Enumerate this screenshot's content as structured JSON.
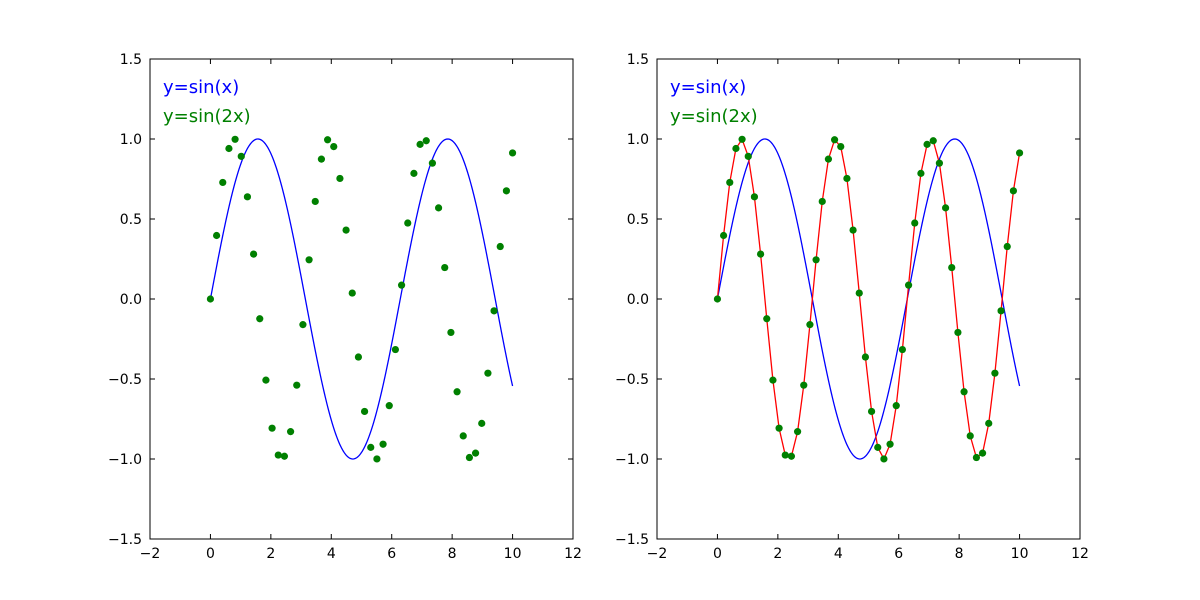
{
  "chart_data": [
    {
      "type": "line",
      "title": "",
      "xlabel": "",
      "ylabel": "",
      "xlim": [
        -2,
        12
      ],
      "ylim": [
        -1.5,
        1.5
      ],
      "xticks": [
        -2,
        0,
        2,
        4,
        6,
        8,
        10,
        12
      ],
      "yticks": [
        -1.5,
        -1.0,
        -0.5,
        0.0,
        0.5,
        1.0,
        1.5
      ],
      "xtick_labels": [
        "−2",
        "0",
        "2",
        "4",
        "6",
        "8",
        "10",
        "12"
      ],
      "ytick_labels": [
        "−1.5",
        "−1.0",
        "−0.5",
        "0.0",
        "0.5",
        "1.0",
        "1.5"
      ],
      "grid": false,
      "legend_placement": "top-left",
      "series": [
        {
          "name": "y=sin(x)",
          "kind": "line",
          "color": "#0000ff",
          "function": "sin(x)",
          "x_range": [
            0,
            10
          ]
        },
        {
          "name": "y=sin(2x)",
          "kind": "scatter",
          "color": "#008000",
          "function": "sin(2x)",
          "x_range": [
            0,
            10
          ]
        }
      ]
    },
    {
      "type": "line",
      "title": "",
      "xlabel": "",
      "ylabel": "",
      "xlim": [
        -2,
        12
      ],
      "ylim": [
        -1.5,
        1.5
      ],
      "xticks": [
        -2,
        0,
        2,
        4,
        6,
        8,
        10,
        12
      ],
      "yticks": [
        -1.5,
        -1.0,
        -0.5,
        0.0,
        0.5,
        1.0,
        1.5
      ],
      "xtick_labels": [
        "−2",
        "0",
        "2",
        "4",
        "6",
        "8",
        "10",
        "12"
      ],
      "ytick_labels": [
        "−1.5",
        "−1.0",
        "−0.5",
        "0.0",
        "0.5",
        "1.0",
        "1.5"
      ],
      "grid": false,
      "legend_placement": "top-left",
      "series": [
        {
          "name": "y=sin(x)",
          "kind": "line",
          "color": "#0000ff",
          "function": "sin(x)",
          "x_range": [
            0,
            10
          ]
        },
        {
          "name": "y=sin(2x)",
          "kind": "line+scatter",
          "color": "#008000",
          "line_color": "#ff0000",
          "function": "sin(2x)",
          "x_range": [
            0,
            10
          ]
        }
      ]
    }
  ]
}
